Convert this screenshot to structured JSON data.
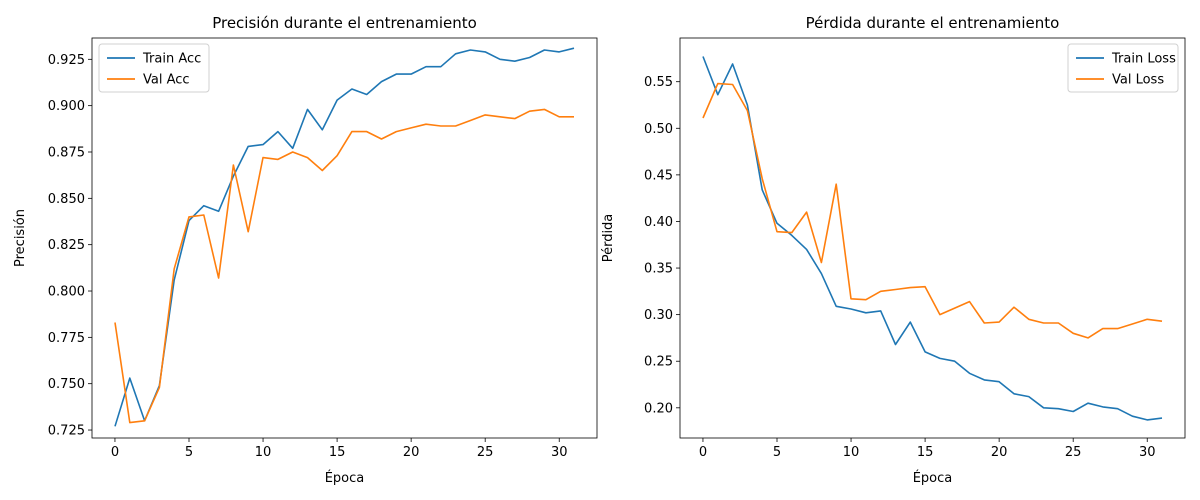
{
  "chart_data": [
    {
      "type": "line",
      "title": "Precisión durante el entrenamiento",
      "xlabel": "Época",
      "ylabel": "Precisión",
      "xlim": [
        -1.55,
        32.55
      ],
      "ylim": [
        0.7207,
        0.9365
      ],
      "xticks": [
        0,
        5,
        10,
        15,
        20,
        25,
        30
      ],
      "xtick_labels": [
        "0",
        "5",
        "10",
        "15",
        "20",
        "25",
        "30"
      ],
      "yticks": [
        0.725,
        0.75,
        0.775,
        0.8,
        0.825,
        0.85,
        0.875,
        0.9,
        0.925
      ],
      "ytick_labels": [
        "0.725",
        "0.750",
        "0.775",
        "0.800",
        "0.825",
        "0.850",
        "0.875",
        "0.900",
        "0.925"
      ],
      "grid": false,
      "legend_position": "upper-left",
      "x": [
        0,
        1,
        2,
        3,
        4,
        5,
        6,
        7,
        8,
        9,
        10,
        11,
        12,
        13,
        14,
        15,
        16,
        17,
        18,
        19,
        20,
        21,
        22,
        23,
        24,
        25,
        26,
        27,
        28,
        29,
        30,
        31
      ],
      "series": [
        {
          "name": "Train Acc",
          "color": "#1f77b4",
          "values": [
            0.727,
            0.753,
            0.73,
            0.749,
            0.806,
            0.838,
            0.846,
            0.843,
            0.862,
            0.878,
            0.879,
            0.886,
            0.877,
            0.898,
            0.887,
            0.903,
            0.909,
            0.906,
            0.913,
            0.917,
            0.917,
            0.921,
            0.921,
            0.928,
            0.93,
            0.929,
            0.925,
            0.924,
            0.926,
            0.93,
            0.929,
            0.931
          ]
        },
        {
          "name": "Val Acc",
          "color": "#ff7f0e",
          "values": [
            0.783,
            0.729,
            0.73,
            0.748,
            0.812,
            0.84,
            0.841,
            0.807,
            0.868,
            0.832,
            0.872,
            0.871,
            0.875,
            0.872,
            0.865,
            0.873,
            0.886,
            0.886,
            0.882,
            0.886,
            0.888,
            0.89,
            0.889,
            0.889,
            0.892,
            0.895,
            0.894,
            0.893,
            0.897,
            0.898,
            0.894,
            0.894
          ]
        }
      ]
    },
    {
      "type": "line",
      "title": "Pérdida durante el entrenamiento",
      "xlabel": "Época",
      "ylabel": "Pérdida",
      "xlim": [
        -1.55,
        32.55
      ],
      "ylim": [
        0.1676,
        0.5969
      ],
      "xticks": [
        0,
        5,
        10,
        15,
        20,
        25,
        30
      ],
      "xtick_labels": [
        "0",
        "5",
        "10",
        "15",
        "20",
        "25",
        "30"
      ],
      "yticks": [
        0.2,
        0.25,
        0.3,
        0.35,
        0.4,
        0.45,
        0.5,
        0.55
      ],
      "ytick_labels": [
        "0.20",
        "0.25",
        "0.30",
        "0.35",
        "0.40",
        "0.45",
        "0.50",
        "0.55"
      ],
      "grid": false,
      "legend_position": "upper-right",
      "x": [
        0,
        1,
        2,
        3,
        4,
        5,
        6,
        7,
        8,
        9,
        10,
        11,
        12,
        13,
        14,
        15,
        16,
        17,
        18,
        19,
        20,
        21,
        22,
        23,
        24,
        25,
        26,
        27,
        28,
        29,
        30,
        31
      ],
      "series": [
        {
          "name": "Train Loss",
          "color": "#1f77b4",
          "values": [
            0.577,
            0.536,
            0.569,
            0.525,
            0.434,
            0.398,
            0.385,
            0.37,
            0.344,
            0.309,
            0.306,
            0.302,
            0.304,
            0.268,
            0.292,
            0.26,
            0.253,
            0.25,
            0.237,
            0.23,
            0.228,
            0.215,
            0.212,
            0.2,
            0.199,
            0.196,
            0.205,
            0.201,
            0.199,
            0.191,
            0.187,
            0.189
          ]
        },
        {
          "name": "Val Loss",
          "color": "#ff7f0e",
          "values": [
            0.511,
            0.548,
            0.547,
            0.519,
            0.446,
            0.389,
            0.388,
            0.41,
            0.356,
            0.44,
            0.317,
            0.316,
            0.325,
            0.327,
            0.329,
            0.33,
            0.3,
            0.307,
            0.314,
            0.291,
            0.292,
            0.308,
            0.295,
            0.291,
            0.291,
            0.28,
            0.275,
            0.285,
            0.285,
            0.29,
            0.295,
            0.293
          ]
        }
      ]
    }
  ]
}
